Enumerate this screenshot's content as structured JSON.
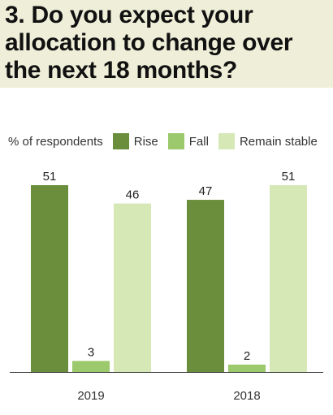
{
  "title": "3. Do you expect your allocation to change over the next 18 months?",
  "chart_data": {
    "type": "bar",
    "unit_label": "% of respondents",
    "categories": [
      "2019",
      "2018"
    ],
    "series": [
      {
        "name": "Rise",
        "values": [
          51,
          47
        ],
        "color": "#6b8e3d"
      },
      {
        "name": "Fall",
        "values": [
          3,
          2
        ],
        "color": "#9cc96b"
      },
      {
        "name": "Remain stable",
        "values": [
          46,
          51
        ],
        "color": "#d6e8b6"
      }
    ],
    "ylim": [
      0,
      51
    ],
    "legend_position": "top",
    "grid": false
  }
}
